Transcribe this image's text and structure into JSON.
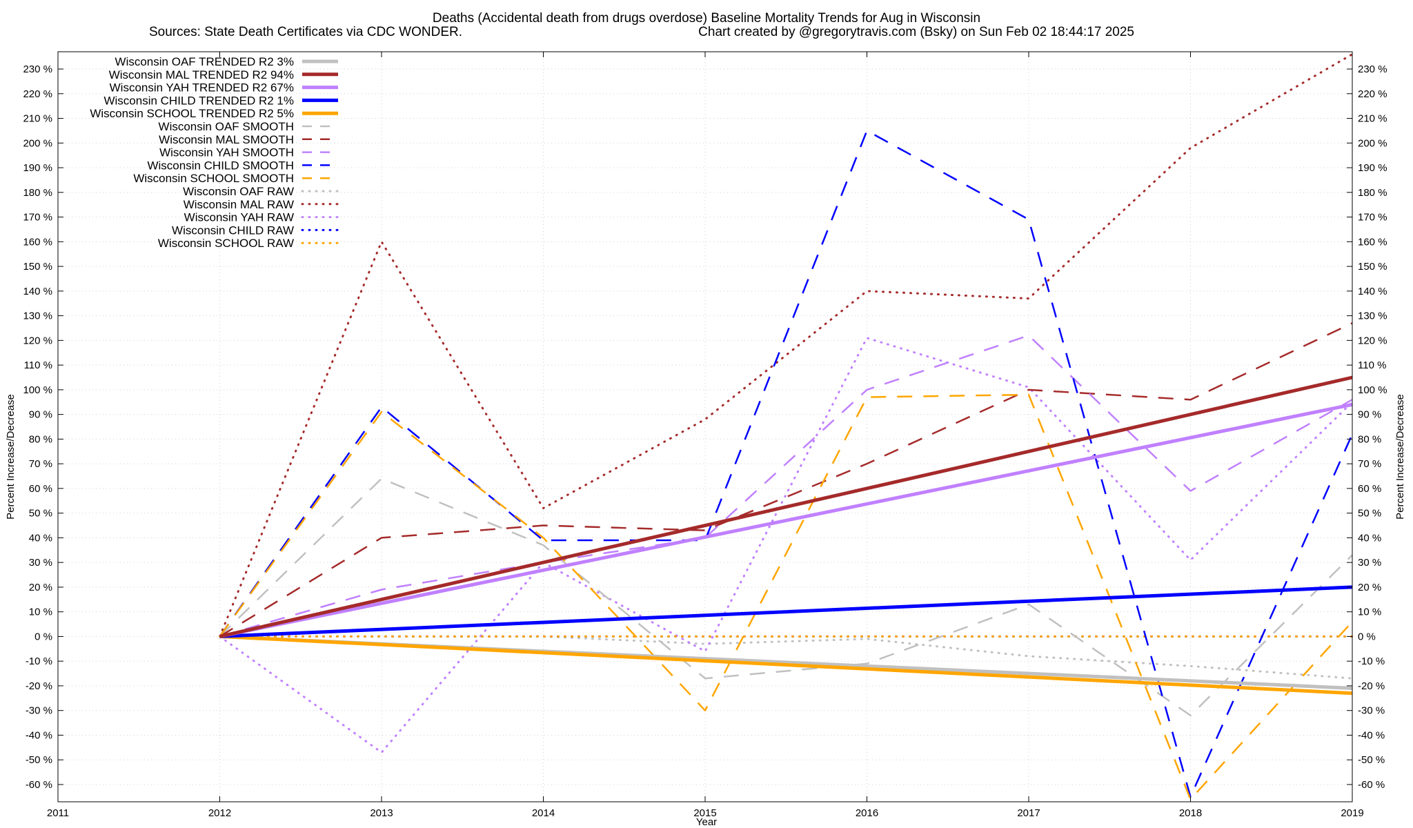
{
  "chart_data": {
    "type": "line",
    "title": "Deaths (Accidental death from drugs overdose)  Baseline Mortality Trends for Aug in Wisconsin",
    "subtitle_left": "Sources: State Death Certificates via CDC WONDER.",
    "subtitle_right": "Chart created by @gregorytravis.com (Bsky) on Sun Feb 02 18:44:17 2025",
    "xlabel": "Year",
    "ylabel": "Percent Increase/Decrease",
    "xlim": [
      2011,
      2019
    ],
    "ylim": [
      -67,
      237
    ],
    "x_ticks": [
      2011,
      2012,
      2013,
      2014,
      2015,
      2016,
      2017,
      2018,
      2019
    ],
    "y_ticks": [
      -60,
      -50,
      -40,
      -30,
      -20,
      -10,
      0,
      10,
      20,
      30,
      40,
      50,
      60,
      70,
      80,
      90,
      100,
      110,
      120,
      130,
      140,
      150,
      160,
      170,
      180,
      190,
      200,
      210,
      220,
      230
    ],
    "y_tick_suffix": " %",
    "grid": true,
    "legend_position": "top-left",
    "series": [
      {
        "name": "Wisconsin OAF TRENDED R2   3%",
        "style": "solid",
        "color": "#c0c0c0",
        "x": [
          2012,
          2019
        ],
        "values": [
          0,
          -21
        ]
      },
      {
        "name": "Wisconsin MAL TRENDED R2  94%",
        "style": "solid",
        "color": "#a52a2a",
        "x": [
          2012,
          2019
        ],
        "values": [
          0,
          105
        ]
      },
      {
        "name": "Wisconsin YAH TRENDED R2  67%",
        "style": "solid",
        "color": "#c080ff",
        "x": [
          2012,
          2019
        ],
        "values": [
          0,
          94
        ]
      },
      {
        "name": "Wisconsin CHILD TRENDED R2   1%",
        "style": "solid",
        "color": "#0000ff",
        "x": [
          2012,
          2019
        ],
        "values": [
          0,
          20
        ]
      },
      {
        "name": "Wisconsin SCHOOL TRENDED R2   5%",
        "style": "solid",
        "color": "#ffa500",
        "x": [
          2012,
          2019
        ],
        "values": [
          0,
          -23
        ]
      },
      {
        "name": "Wisconsin OAF SMOOTH",
        "style": "dashed",
        "color": "#c0c0c0",
        "x": [
          2012,
          2013,
          2014,
          2015,
          2016,
          2017,
          2018,
          2019
        ],
        "values": [
          0,
          64,
          37,
          -17,
          -11,
          13,
          -32,
          33
        ]
      },
      {
        "name": "Wisconsin MAL SMOOTH",
        "style": "dashed",
        "color": "#a52a2a",
        "x": [
          2012,
          2013,
          2014,
          2015,
          2016,
          2017,
          2018,
          2019
        ],
        "values": [
          0,
          40,
          45,
          43,
          70,
          100,
          96,
          127
        ]
      },
      {
        "name": "Wisconsin YAH SMOOTH",
        "style": "dashed",
        "color": "#c080ff",
        "x": [
          2012,
          2013,
          2014,
          2015,
          2016,
          2017,
          2018,
          2019
        ],
        "values": [
          0,
          19,
          30,
          40,
          100,
          122,
          59,
          96
        ]
      },
      {
        "name": "Wisconsin CHILD SMOOTH",
        "style": "dashed",
        "color": "#0000ff",
        "x": [
          2012,
          2013,
          2014,
          2015,
          2016,
          2017,
          2018,
          2019
        ],
        "values": [
          0,
          93,
          39,
          39,
          205,
          169,
          -65,
          82
        ]
      },
      {
        "name": "Wisconsin SCHOOL SMOOTH",
        "style": "dashed",
        "color": "#ffa500",
        "x": [
          2012,
          2013,
          2014,
          2015,
          2016,
          2017,
          2018,
          2019
        ],
        "values": [
          0,
          91,
          40,
          -30,
          97,
          98,
          -66,
          6
        ]
      },
      {
        "name": "Wisconsin OAF RAW",
        "style": "dotted",
        "color": "#c0c0c0",
        "x": [
          2012,
          2013,
          2014,
          2015,
          2016,
          2017,
          2018,
          2019
        ],
        "values": [
          0,
          0,
          0,
          -3,
          -1,
          -8,
          -12,
          -17
        ]
      },
      {
        "name": "Wisconsin MAL RAW",
        "style": "dotted",
        "color": "#a52a2a",
        "x": [
          2012,
          2013,
          2014,
          2015,
          2016,
          2017,
          2018,
          2019
        ],
        "values": [
          0,
          160,
          52,
          88,
          140,
          137,
          198,
          236
        ]
      },
      {
        "name": "Wisconsin YAH RAW",
        "style": "dotted",
        "color": "#c080ff",
        "x": [
          2012,
          2013,
          2014,
          2015,
          2016,
          2017,
          2018,
          2019
        ],
        "values": [
          0,
          -47,
          30,
          -6,
          121,
          101,
          31,
          95
        ]
      },
      {
        "name": "Wisconsin CHILD RAW",
        "style": "dotted",
        "color": "#0000ff",
        "x": [
          2012,
          2013,
          2014,
          2015,
          2016,
          2017,
          2018,
          2019
        ],
        "values": [
          0,
          0,
          0,
          0,
          0,
          0,
          0,
          0
        ]
      },
      {
        "name": "Wisconsin SCHOOL RAW",
        "style": "dotted",
        "color": "#ffa500",
        "x": [
          2012,
          2013,
          2014,
          2015,
          2016,
          2017,
          2018,
          2019
        ],
        "values": [
          0,
          0,
          0,
          0,
          0,
          0,
          0,
          0
        ]
      }
    ]
  }
}
